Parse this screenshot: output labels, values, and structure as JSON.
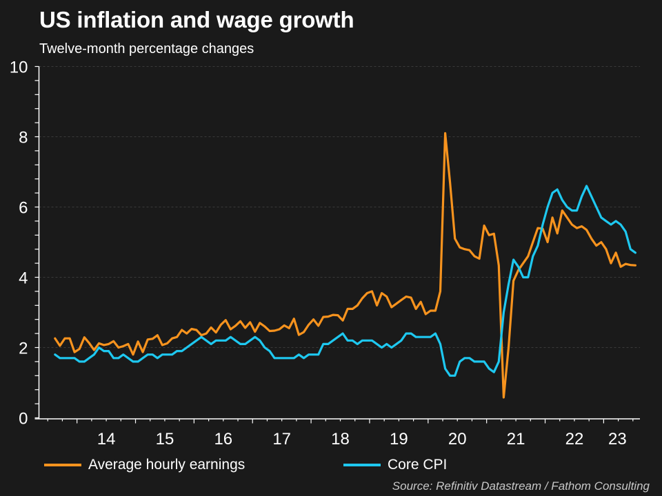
{
  "header": {
    "title": "US inflation and wage growth",
    "subtitle": "Twelve-month percentage changes"
  },
  "legend": [
    {
      "label": "Average hourly earnings",
      "color": "#f7931e"
    },
    {
      "label": "Core CPI",
      "color": "#1ec8f0"
    }
  ],
  "source": "Source: Refinitiv Datastream / Fathom Consulting",
  "chart_data": {
    "type": "line",
    "title": "US inflation and wage growth",
    "subtitle": "Twelve-month percentage changes",
    "xlabel": "",
    "ylabel": "",
    "x_start": "2013-08",
    "x_end": "2023-07",
    "frequency": "monthly",
    "xlim": [
      2013.35,
      2023.62
    ],
    "ylim": [
      0,
      10
    ],
    "yticks": [
      0,
      2,
      4,
      6,
      8,
      10
    ],
    "xtick_labels": [
      "14",
      "15",
      "16",
      "17",
      "18",
      "19",
      "20",
      "21",
      "22",
      "23"
    ],
    "grid": true,
    "legend_position": "bottom",
    "series": [
      {
        "name": "Average hourly earnings",
        "color": "#f7931e",
        "values": [
          2.26,
          2.05,
          2.26,
          2.26,
          1.87,
          1.96,
          2.29,
          2.13,
          1.93,
          2.12,
          2.07,
          2.1,
          2.18,
          2.0,
          2.04,
          2.1,
          1.8,
          2.17,
          1.87,
          2.23,
          2.25,
          2.35,
          2.07,
          2.12,
          2.26,
          2.3,
          2.5,
          2.4,
          2.53,
          2.5,
          2.35,
          2.4,
          2.57,
          2.43,
          2.65,
          2.78,
          2.52,
          2.62,
          2.75,
          2.56,
          2.72,
          2.45,
          2.7,
          2.6,
          2.47,
          2.48,
          2.52,
          2.63,
          2.55,
          2.82,
          2.36,
          2.44,
          2.65,
          2.8,
          2.62,
          2.87,
          2.88,
          2.93,
          2.92,
          2.77,
          3.1,
          3.1,
          3.2,
          3.4,
          3.55,
          3.6,
          3.2,
          3.55,
          3.45,
          3.15,
          3.25,
          3.35,
          3.45,
          3.42,
          3.1,
          3.3,
          2.95,
          3.05,
          3.05,
          3.6,
          8.1,
          6.7,
          5.1,
          4.85,
          4.8,
          4.77,
          4.6,
          4.53,
          5.47,
          5.2,
          5.24,
          4.34,
          0.58,
          2.0,
          3.9,
          4.2,
          4.4,
          4.6,
          5.0,
          5.4,
          5.38,
          5.0,
          5.7,
          5.25,
          5.9,
          5.7,
          5.5,
          5.4,
          5.45,
          5.35,
          5.1,
          4.9,
          5.0,
          4.8,
          4.4,
          4.7,
          4.3,
          4.38,
          4.35,
          4.34
        ]
      },
      {
        "name": "Core CPI",
        "color": "#1ec8f0",
        "values": [
          1.8,
          1.7,
          1.7,
          1.7,
          1.7,
          1.6,
          1.6,
          1.7,
          1.8,
          2.0,
          1.9,
          1.9,
          1.7,
          1.7,
          1.8,
          1.7,
          1.6,
          1.6,
          1.7,
          1.8,
          1.8,
          1.7,
          1.8,
          1.8,
          1.8,
          1.9,
          1.9,
          2.0,
          2.1,
          2.2,
          2.3,
          2.2,
          2.1,
          2.2,
          2.2,
          2.2,
          2.3,
          2.2,
          2.1,
          2.1,
          2.2,
          2.3,
          2.2,
          2.0,
          1.9,
          1.7,
          1.7,
          1.7,
          1.7,
          1.7,
          1.8,
          1.7,
          1.8,
          1.8,
          1.8,
          2.1,
          2.1,
          2.2,
          2.3,
          2.4,
          2.2,
          2.2,
          2.1,
          2.2,
          2.2,
          2.2,
          2.1,
          2.0,
          2.1,
          2.0,
          2.1,
          2.2,
          2.4,
          2.4,
          2.3,
          2.3,
          2.3,
          2.3,
          2.4,
          2.1,
          1.4,
          1.2,
          1.2,
          1.6,
          1.7,
          1.7,
          1.6,
          1.6,
          1.6,
          1.4,
          1.3,
          1.6,
          3.0,
          3.8,
          4.5,
          4.3,
          4.0,
          4.0,
          4.6,
          4.9,
          5.5,
          6.0,
          6.4,
          6.5,
          6.2,
          6.0,
          5.9,
          5.9,
          6.3,
          6.6,
          6.3,
          6.0,
          5.7,
          5.6,
          5.5,
          5.6,
          5.5,
          5.3,
          4.8,
          4.7
        ]
      }
    ]
  }
}
